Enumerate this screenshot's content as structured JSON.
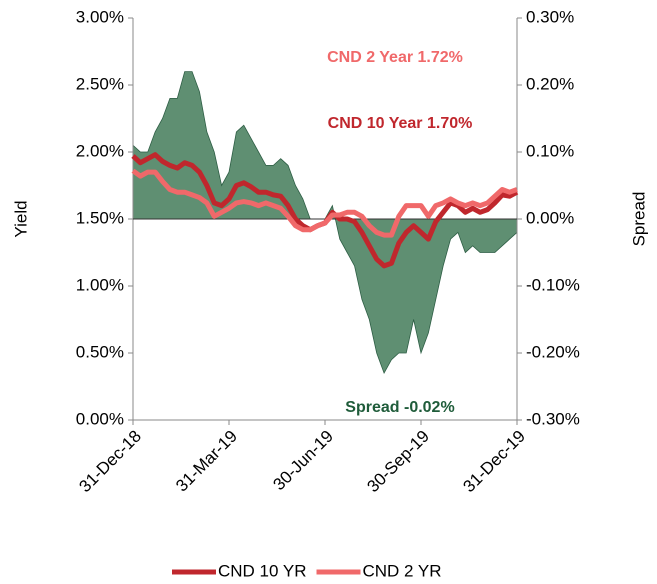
{
  "chart_data": {
    "type": "line",
    "ylabel": "Yield",
    "y2label": "Spread",
    "categories": [
      "31-Dec-18",
      null,
      null,
      null,
      null,
      null,
      null,
      null,
      null,
      null,
      null,
      null,
      null,
      "31-Mar-19",
      null,
      null,
      null,
      null,
      null,
      null,
      null,
      null,
      null,
      null,
      null,
      null,
      "30-Jun-19",
      null,
      null,
      null,
      null,
      null,
      null,
      null,
      null,
      null,
      null,
      null,
      null,
      "30-Sep-19",
      null,
      null,
      null,
      null,
      null,
      null,
      null,
      null,
      null,
      null,
      null,
      null,
      "31-Dec-19"
    ],
    "series": [
      {
        "name": "CND 10 YR",
        "color": "#c0272d",
        "values": [
          1.97,
          1.92,
          1.95,
          1.98,
          1.93,
          1.9,
          1.88,
          1.92,
          1.9,
          1.85,
          1.75,
          1.62,
          1.6,
          1.65,
          1.75,
          1.77,
          1.74,
          1.7,
          1.7,
          1.68,
          1.67,
          1.6,
          1.5,
          1.45,
          1.42,
          1.45,
          1.47,
          1.55,
          1.5,
          1.5,
          1.48,
          1.4,
          1.3,
          1.2,
          1.15,
          1.17,
          1.32,
          1.4,
          1.45,
          1.4,
          1.35,
          1.48,
          1.55,
          1.62,
          1.6,
          1.55,
          1.58,
          1.55,
          1.57,
          1.62,
          1.68,
          1.67,
          1.7
        ]
      },
      {
        "name": "CND 2 YR",
        "color": "#f0696a",
        "values": [
          1.86,
          1.82,
          1.85,
          1.85,
          1.78,
          1.72,
          1.7,
          1.7,
          1.68,
          1.66,
          1.62,
          1.52,
          1.55,
          1.58,
          1.62,
          1.63,
          1.62,
          1.6,
          1.62,
          1.6,
          1.58,
          1.52,
          1.45,
          1.42,
          1.42,
          1.45,
          1.47,
          1.53,
          1.53,
          1.55,
          1.55,
          1.52,
          1.45,
          1.4,
          1.38,
          1.38,
          1.52,
          1.6,
          1.6,
          1.6,
          1.52,
          1.6,
          1.62,
          1.65,
          1.62,
          1.6,
          1.62,
          1.6,
          1.62,
          1.67,
          1.72,
          1.7,
          1.72
        ]
      },
      {
        "type": "area",
        "axis": "y2",
        "color": "#5f8f72",
        "values": [
          0.11,
          0.1,
          0.1,
          0.13,
          0.15,
          0.18,
          0.18,
          0.22,
          0.22,
          0.19,
          0.13,
          0.1,
          0.05,
          0.07,
          0.13,
          0.14,
          0.12,
          0.1,
          0.08,
          0.08,
          0.09,
          0.08,
          0.05,
          0.03,
          0.0,
          0.0,
          0.0,
          0.02,
          -0.03,
          -0.05,
          -0.07,
          -0.12,
          -0.15,
          -0.2,
          -0.23,
          -0.21,
          -0.2,
          -0.2,
          -0.15,
          -0.2,
          -0.17,
          -0.12,
          -0.07,
          -0.03,
          -0.02,
          -0.05,
          -0.04,
          -0.05,
          -0.05,
          -0.05,
          -0.04,
          -0.03,
          -0.02
        ]
      }
    ],
    "annotations": [
      {
        "text": "CND 2 Year 1.72%",
        "color": "#f0696a"
      },
      {
        "text": "CND 10 Year 1.70%",
        "color": "#c0272d"
      },
      {
        "text": "Spread -0.02%",
        "color": "#1f5c3a"
      }
    ],
    "ylim": [
      0,
      3
    ],
    "yticks": [
      {
        "value": 0,
        "label": "0.00%"
      },
      {
        "value": 0.5,
        "label": "0.50%"
      },
      {
        "value": 1,
        "label": "1.00%"
      },
      {
        "value": 1.5,
        "label": "1.50%"
      },
      {
        "value": 2,
        "label": "2.00%"
      },
      {
        "value": 2.5,
        "label": "2.50%"
      },
      {
        "value": 3,
        "label": "3.00%"
      }
    ],
    "y2lim": [
      -0.3,
      0.3
    ],
    "y2ticks": [
      {
        "value": -0.3,
        "label": "-0.30%"
      },
      {
        "value": -0.2,
        "label": "-0.20%"
      },
      {
        "value": -0.1,
        "label": "-0.10%"
      },
      {
        "value": 0,
        "label": "0.00%"
      },
      {
        "value": 0.1,
        "label": "0.10%"
      },
      {
        "value": 0.2,
        "label": "0.20%"
      },
      {
        "value": 0.3,
        "label": "0.30%"
      }
    ]
  }
}
